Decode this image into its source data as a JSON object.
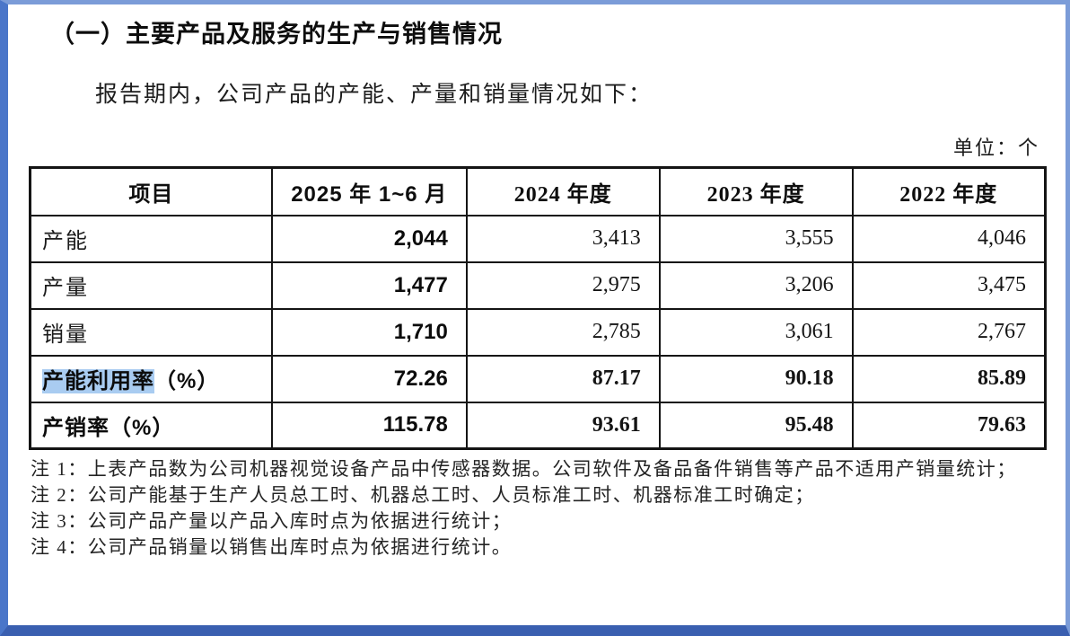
{
  "title": "（一）主要产品及服务的生产与销售情况",
  "intro": "报告期内，公司产品的产能、产量和销量情况如下：",
  "unit_label": "单位：个",
  "table": {
    "headers": [
      "项目",
      "2025 年 1~6 月",
      "2024 年度",
      "2023 年度",
      "2022 年度"
    ],
    "rows": [
      {
        "label": "产能",
        "values": [
          "2,044",
          "3,413",
          "3,555",
          "4,046"
        ]
      },
      {
        "label": "产量",
        "values": [
          "1,477",
          "2,975",
          "3,206",
          "3,475"
        ]
      },
      {
        "label": "销量",
        "values": [
          "1,710",
          "2,785",
          "3,061",
          "2,767"
        ]
      },
      {
        "label_hl": "产能利用率",
        "label_rest": "（%）",
        "values": [
          "72.26",
          "87.17",
          "90.18",
          "85.89"
        ]
      },
      {
        "label": "产销率（%）",
        "values": [
          "115.78",
          "93.61",
          "95.48",
          "79.63"
        ]
      }
    ]
  },
  "notes": [
    "注 1：上表产品数为公司机器视觉设备产品中传感器数据。公司软件及备品备件销售等产品不适用产销量统计；",
    "注 2：公司产能基于生产人员总工时、机器总工时、人员标准工时、机器标准工时确定；",
    "注 3：公司产品产量以产品入库时点为依据进行统计；",
    "注 4：公司产品销量以销售出库时点为依据进行统计。"
  ],
  "colors": {
    "frame_blue": "#4a76c9",
    "frame_blue_dark": "#3a5fb0",
    "selection_highlight": "#a9ccf1",
    "text": "#141414"
  }
}
